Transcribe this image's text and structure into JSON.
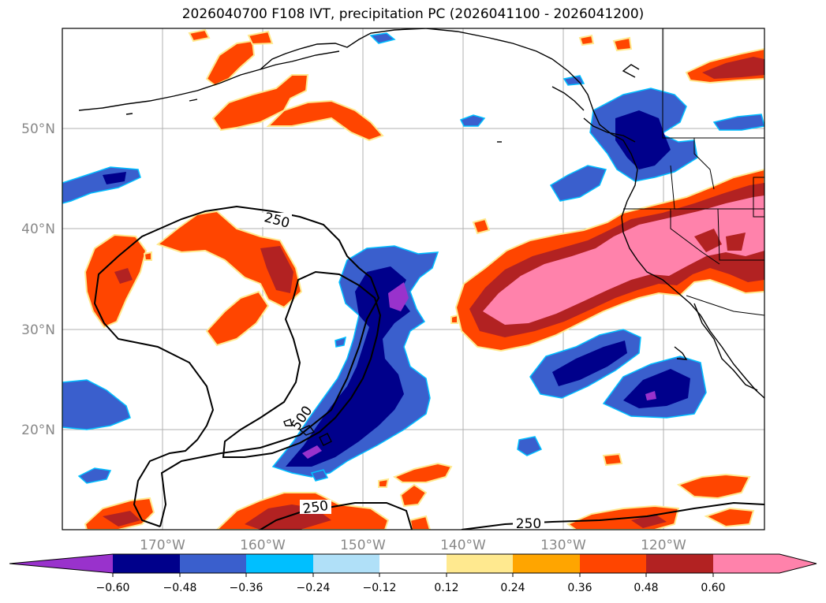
{
  "title": "2026040700 F108 IVT, precipitation PC (2026041100 - 2026041200)",
  "map": {
    "lat_labels": [
      "50°N",
      "40°N",
      "30°N",
      "20°N"
    ],
    "lon_labels": [
      "170°W",
      "160°W",
      "150°W",
      "140°W",
      "130°W",
      "120°W"
    ],
    "contour_labels": [
      "250",
      "250",
      "250",
      "500"
    ],
    "colors": {
      "neg_060": "#9932cc",
      "neg_048": "#00008b",
      "neg_036": "#3a5fcd",
      "neg_024": "#00bfff",
      "neg_012": "#b0e0f8",
      "zero": "#ffffff",
      "pos_012": "#ffe98f",
      "pos_024": "#ffa500",
      "pos_036": "#ff4500",
      "pos_048": "#b22222",
      "pos_060": "#ff82ab"
    }
  },
  "colorbar": {
    "ticks": [
      "−0.60",
      "−0.48",
      "−0.36",
      "−0.24",
      "−0.12",
      "0.12",
      "0.24",
      "0.36",
      "0.48",
      "0.60"
    ]
  }
}
